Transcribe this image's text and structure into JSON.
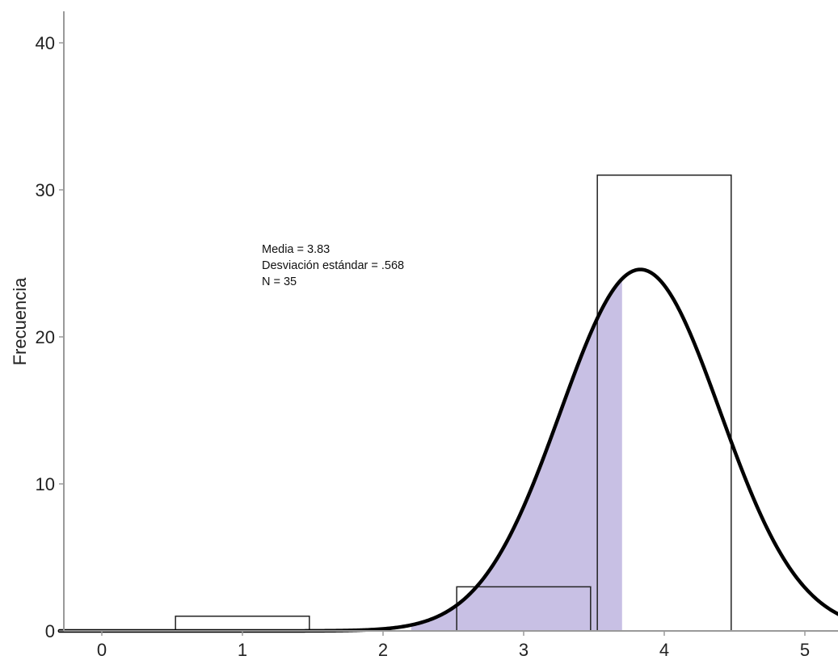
{
  "chart_data": {
    "type": "bar",
    "subtype": "histogram with fitted normal curve",
    "title": "",
    "xlabel": "",
    "ylabel": "Frecuencia",
    "xlim": [
      -0.3,
      5.2
    ],
    "ylim": [
      0,
      42
    ],
    "x_ticks": [
      0,
      1,
      2,
      3,
      4,
      5
    ],
    "y_ticks": [
      0,
      10,
      20,
      30,
      40
    ],
    "bins": [
      {
        "center": 1,
        "count": 1
      },
      {
        "center": 3,
        "count": 3
      },
      {
        "center": 4,
        "count": 31
      }
    ],
    "normal_curve": {
      "mean": 3.83,
      "sd": 0.568,
      "n": 35,
      "bin_width": 1
    },
    "shaded_region": {
      "from_x": 2.2,
      "to_x": 3.7,
      "color": "#c8c0e4"
    },
    "annotations": [
      "Media = 3.83",
      "Desviación estándar = .568",
      "N = 35"
    ],
    "grid": false,
    "legend": "none"
  }
}
